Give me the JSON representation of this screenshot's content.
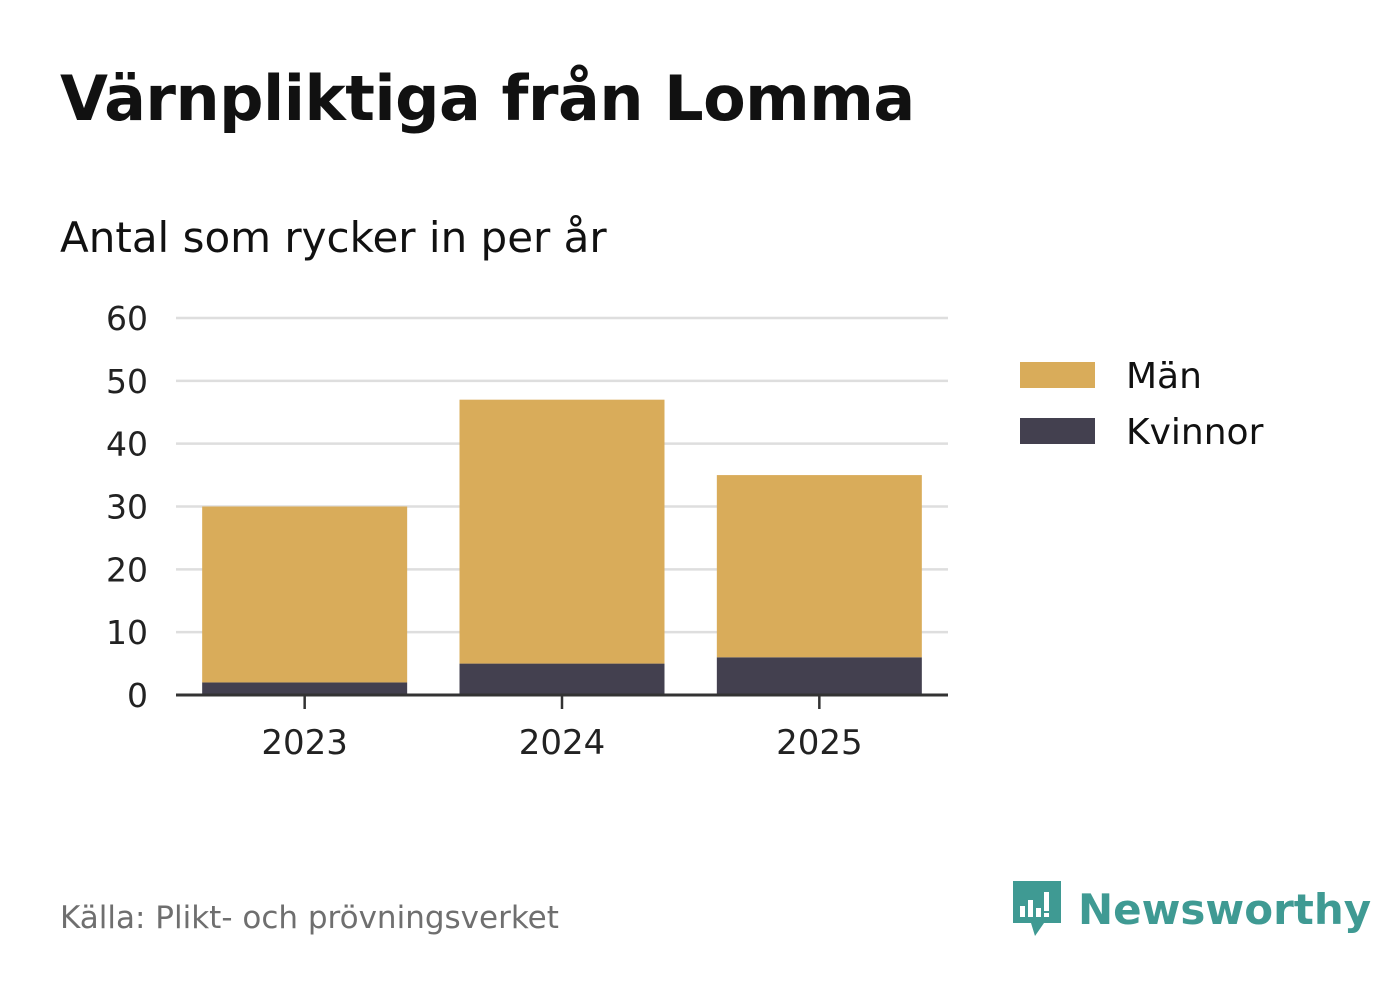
{
  "title": "Värnpliktiga från Lomma",
  "subtitle": "Antal som rycker in per år",
  "source": "Källa: Plikt- och prövningsverket",
  "brand": "Newsworthy",
  "chart_data": {
    "type": "bar",
    "stacked": true,
    "categories": [
      "2023",
      "2024",
      "2025"
    ],
    "series": [
      {
        "name": "Kvinnor",
        "values": [
          2,
          5,
          6
        ],
        "color": "#43404f"
      },
      {
        "name": "Män",
        "values": [
          28,
          42,
          29
        ],
        "color": "#d9ac5a"
      }
    ],
    "legend_order": [
      "Män",
      "Kvinnor"
    ],
    "ylim": [
      0,
      60
    ],
    "yticks": [
      0,
      10,
      20,
      30,
      40,
      50,
      60
    ],
    "grid": true,
    "legend_position": "right"
  }
}
